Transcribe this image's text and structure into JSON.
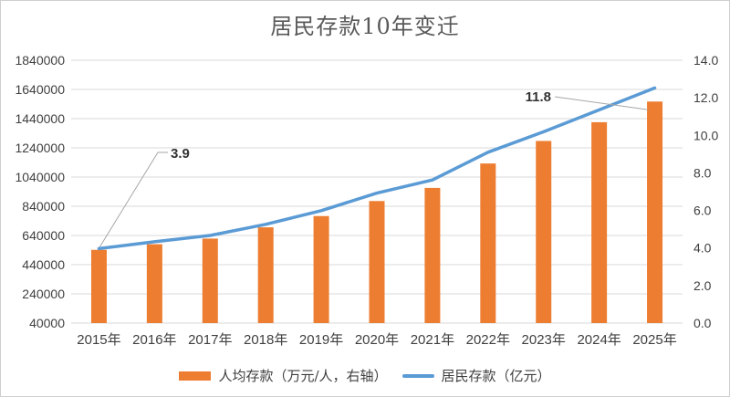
{
  "theme": {
    "bar_color": "#ED7D31",
    "line_color": "#5B9BD5",
    "grid_color": "#d9d9d9",
    "axis_text_color": "#3f3f3f",
    "title_color": "#595959",
    "leader_color": "#a6a6a6",
    "background": "#ffffff",
    "border_color": "#cfcfcf"
  },
  "chart": {
    "title": "居民存款10年变迁"
  },
  "chart_data": {
    "type": "bar+line combo",
    "title": "居民存款10年变迁",
    "grid": true,
    "legend_position": "bottom",
    "categories": [
      "2015年",
      "2016年",
      "2017年",
      "2018年",
      "2019年",
      "2020年",
      "2021年",
      "2022年",
      "2023年",
      "2024年",
      "2025年"
    ],
    "series": [
      {
        "name": "人均存款（万元/人，右轴）",
        "type": "bar",
        "axis": "right",
        "color": "#ED7D31",
        "values": [
          3.9,
          4.2,
          4.5,
          5.1,
          5.7,
          6.5,
          7.2,
          8.5,
          9.7,
          10.7,
          11.8
        ]
      },
      {
        "name": "居民存款（亿元）",
        "type": "line",
        "axis": "left",
        "color": "#5B9BD5",
        "values": [
          550000,
          597000,
          640000,
          716000,
          810000,
          930000,
          1020000,
          1210000,
          1350000,
          1500000,
          1650000
        ]
      }
    ],
    "left_axis": {
      "min": 40000,
      "max": 1840000,
      "step": 200000,
      "ticks": [
        "1840000",
        "1640000",
        "1440000",
        "1240000",
        "1040000",
        "840000",
        "640000",
        "440000",
        "240000",
        "40000"
      ],
      "tick_values": [
        1840000,
        1640000,
        1440000,
        1240000,
        1040000,
        840000,
        640000,
        440000,
        240000,
        40000
      ]
    },
    "right_axis": {
      "min": 0,
      "max": 14,
      "step": 2,
      "ticks": [
        "14.0",
        "12.0",
        "10.0",
        "8.0",
        "6.0",
        "4.0",
        "2.0",
        "0.0"
      ],
      "tick_values": [
        14,
        12,
        10,
        8,
        6,
        4,
        2,
        0
      ]
    },
    "annotations": [
      {
        "text": "3.9",
        "series": "人均存款（万元/人，右轴）",
        "category": "2015年",
        "category_index": 0
      },
      {
        "text": "11.8",
        "series": "人均存款（万元/人，右轴）",
        "category": "2025年",
        "category_index": 10
      }
    ]
  }
}
